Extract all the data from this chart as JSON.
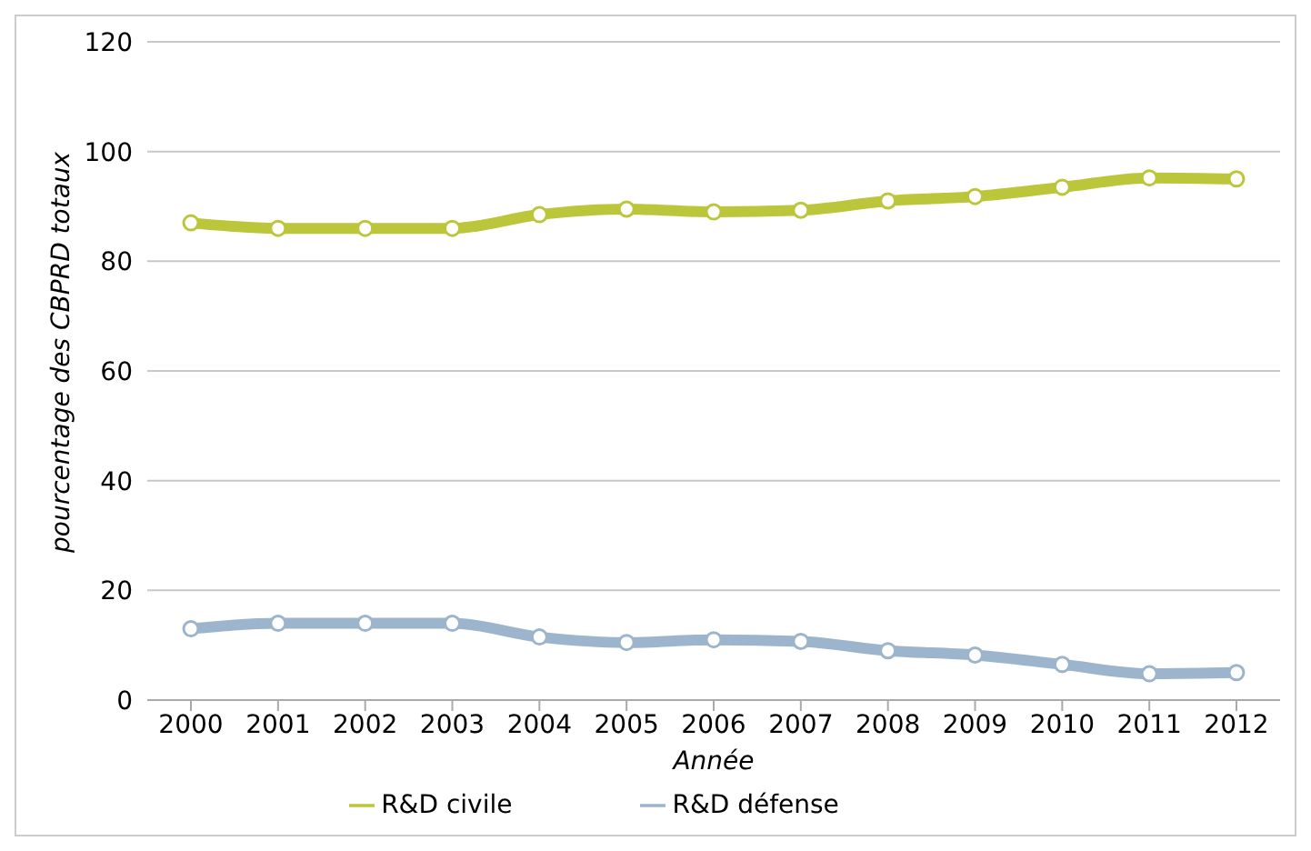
{
  "chart_data": {
    "type": "line",
    "xlabel": "Année",
    "ylabel": "pourcentage des CBPRD totaux",
    "categories": [
      "2000",
      "2001",
      "2002",
      "2003",
      "2004",
      "2005",
      "2006",
      "2007",
      "2008",
      "2009",
      "2010",
      "2011",
      "2012"
    ],
    "series": [
      {
        "name": "R&D civile",
        "color": "#bcc63a",
        "values": [
          87,
          86,
          86,
          86,
          88.5,
          89.5,
          89,
          89.3,
          91,
          91.8,
          93.5,
          95.2,
          95
        ]
      },
      {
        "name": "R&D défense",
        "color": "#9db5cc",
        "values": [
          13,
          14,
          14,
          14,
          11.5,
          10.5,
          11,
          10.7,
          9,
          8.2,
          6.5,
          4.8,
          5
        ]
      }
    ],
    "ylim": [
      0,
      120
    ],
    "yticks": [
      0,
      20,
      40,
      60,
      80,
      100,
      120
    ],
    "grid": "y",
    "legend": "bottom",
    "marker": "circle"
  }
}
